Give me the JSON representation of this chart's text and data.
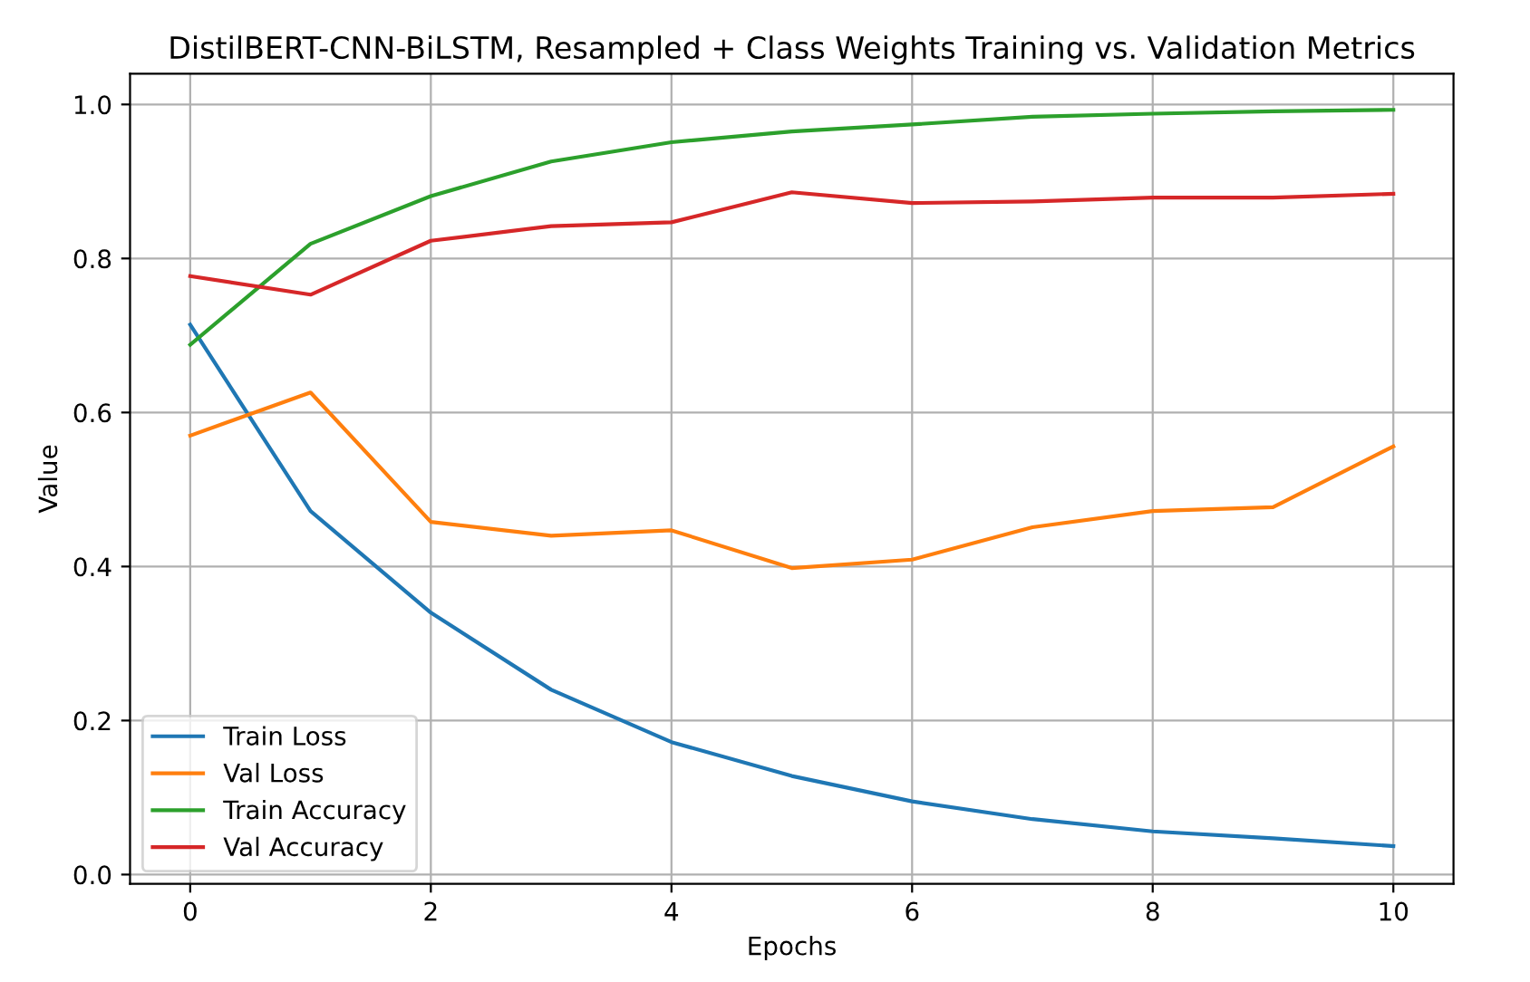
{
  "chart_data": {
    "type": "line",
    "title": "DistilBERT-CNN-BiLSTM, Resampled + Class Weights Training vs. Validation Metrics",
    "xlabel": "Epochs",
    "ylabel": "Value",
    "x": [
      0,
      1,
      2,
      3,
      4,
      5,
      6,
      7,
      8,
      9,
      10
    ],
    "series": [
      {
        "name": "Train Loss",
        "color": "#1f77b4",
        "values": [
          0.714,
          0.472,
          0.34,
          0.24,
          0.172,
          0.128,
          0.095,
          0.072,
          0.056,
          0.047,
          0.037
        ]
      },
      {
        "name": "Val Loss",
        "color": "#ff7f0e",
        "values": [
          0.57,
          0.626,
          0.458,
          0.44,
          0.447,
          0.398,
          0.409,
          0.451,
          0.472,
          0.477,
          0.556
        ]
      },
      {
        "name": "Train Accuracy",
        "color": "#2ca02c",
        "values": [
          0.688,
          0.819,
          0.881,
          0.926,
          0.951,
          0.965,
          0.974,
          0.984,
          0.988,
          0.991,
          0.993
        ]
      },
      {
        "name": "Val Accuracy",
        "color": "#d62728",
        "values": [
          0.777,
          0.753,
          0.823,
          0.842,
          0.847,
          0.886,
          0.872,
          0.874,
          0.879,
          0.879,
          0.884
        ]
      }
    ],
    "xlim": [
      -0.5,
      10.5
    ],
    "xticks": [
      0,
      2,
      4,
      6,
      8,
      10
    ],
    "ylim": [
      -0.012,
      1.04
    ],
    "yticks": [
      {
        "value": 0,
        "label": "0.0"
      },
      {
        "value": 0.2,
        "label": "0.2"
      },
      {
        "value": 0.4,
        "label": "0.4"
      },
      {
        "value": 0.6,
        "label": "0.6"
      },
      {
        "value": 0.8,
        "label": "0.8"
      },
      {
        "value": 1.0,
        "label": "1.0"
      }
    ],
    "grid": true,
    "legend": "lower left",
    "marker": "none",
    "line_style": "solid"
  }
}
